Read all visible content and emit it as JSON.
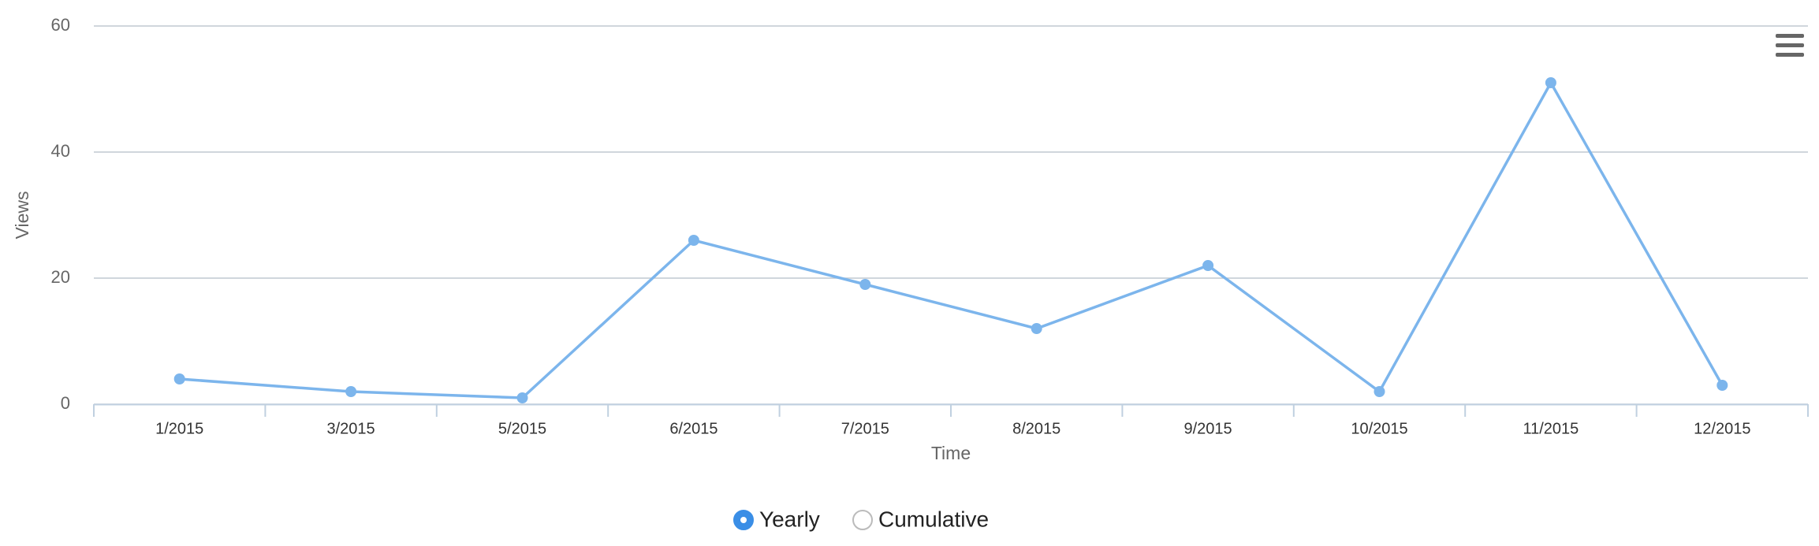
{
  "chart_data": {
    "type": "line",
    "y_label": "Views",
    "x_label": "Time",
    "categories": [
      "1/2015",
      "3/2015",
      "5/2015",
      "6/2015",
      "7/2015",
      "8/2015",
      "9/2015",
      "10/2015",
      "11/2015",
      "12/2015"
    ],
    "values": [
      4,
      2,
      1,
      26,
      19,
      12,
      22,
      2,
      51,
      3
    ],
    "color": "#7cb5ec",
    "ylim": [
      0,
      60
    ],
    "yticks": [
      0,
      20,
      40,
      60
    ],
    "grid": true
  },
  "view_options": [
    "Yearly",
    "Cumulative"
  ]
}
